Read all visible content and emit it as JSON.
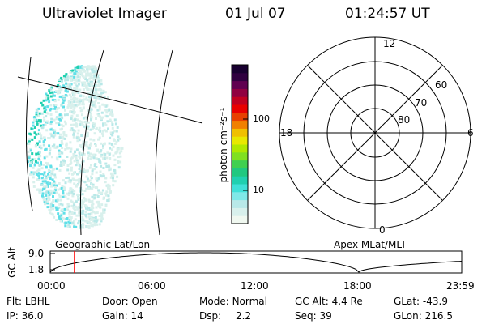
{
  "header": {
    "title": "Ultraviolet Imager",
    "date": "01 Jul 07",
    "time": "01:24:57 UT"
  },
  "colorbar": {
    "unit_label": "photon cm⁻²s⁻¹",
    "ticks": [
      {
        "label": "100",
        "value": 100
      },
      {
        "label": "10",
        "value": 10
      }
    ],
    "colors": [
      "#f0f8f0",
      "#d8f0ec",
      "#b8e8e8",
      "#80e8e8",
      "#40e0d8",
      "#20d0b0",
      "#20c880",
      "#40d050",
      "#80e020",
      "#b0e800",
      "#e8e800",
      "#f0c000",
      "#f08000",
      "#e84000",
      "#e80000",
      "#c00020",
      "#900040",
      "#600050",
      "#300040",
      "#180030"
    ]
  },
  "polar": {
    "lat_labels": [
      {
        "label": "60",
        "value": 60
      },
      {
        "label": "70",
        "value": 70
      },
      {
        "label": "80",
        "value": 80
      }
    ],
    "mlt_labels": {
      "top": "12",
      "bottom": "0",
      "left": "18",
      "right": "6"
    }
  },
  "timeline": {
    "axis_label": "GC Alt",
    "y_ticks": [
      "9.0",
      "1.8"
    ],
    "left_caption": "Geographic Lat/Lon",
    "right_caption": "Apex MLat/MLT",
    "x_ticks": [
      "00:00",
      "06:00",
      "12:00",
      "18:00",
      "23:59"
    ],
    "marker_time": "01:24:57",
    "altitude_color": "#000000",
    "marker_color": "#ff0000"
  },
  "info": {
    "flt": {
      "label": "Flt:",
      "value": "LBHL"
    },
    "ip": {
      "label": "IP:",
      "value": "36.0"
    },
    "door": {
      "label": "Door:",
      "value": "Open"
    },
    "gain": {
      "label": "Gain:",
      "value": "14"
    },
    "mode": {
      "label": "Mode:",
      "value": "Normal"
    },
    "dsp": {
      "label": "Dsp:",
      "value": "2.2"
    },
    "gcalt": {
      "label": "GC Alt:",
      "value": "4.4 Re"
    },
    "seq": {
      "label": "Seq:",
      "value": "39"
    },
    "glat": {
      "label": "GLat:",
      "value": "-43.9"
    },
    "glon": {
      "label": "GLon:",
      "value": "216.5"
    }
  }
}
